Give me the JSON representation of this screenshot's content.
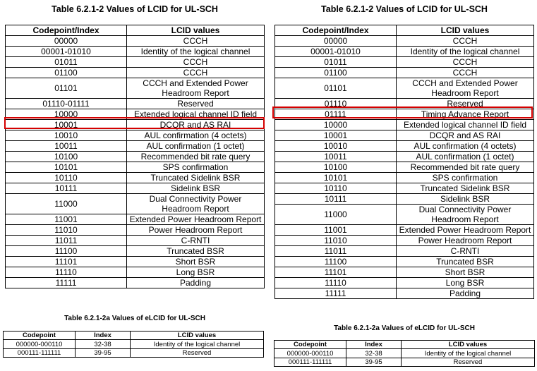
{
  "left": {
    "title": "Table 6.2.1-2 Values of LCID for UL-SCH",
    "headers": [
      "Codepoint/Index",
      "LCID values"
    ],
    "rows": [
      [
        "00000",
        "CCCH"
      ],
      [
        "00001-01010",
        "Identity of the logical channel"
      ],
      [
        "01011",
        "CCCH"
      ],
      [
        "01100",
        "CCCH"
      ],
      [
        "01101",
        "CCCH and Extended Power Headroom Report"
      ],
      [
        "01110-01111",
        "Reserved"
      ],
      [
        "10000",
        "Extended logical channel ID field"
      ],
      [
        "10001",
        "DCQR and AS RAI"
      ],
      [
        "10010",
        "AUL confirmation (4 octets)"
      ],
      [
        "10011",
        "AUL confirmation (1 octet)"
      ],
      [
        "10100",
        "Recommended bit rate query"
      ],
      [
        "10101",
        "SPS confirmation"
      ],
      [
        "10110",
        "Truncated Sidelink BSR"
      ],
      [
        "10111",
        "Sidelink BSR"
      ],
      [
        "11000",
        "Dual Connectivity Power Headroom Report"
      ],
      [
        "11001",
        "Extended Power Headroom Report"
      ],
      [
        "11010",
        "Power Headroom Report"
      ],
      [
        "11011",
        "C-RNTI"
      ],
      [
        "11100",
        "Truncated BSR"
      ],
      [
        "11101",
        "Short BSR"
      ],
      [
        "11110",
        "Long BSR"
      ],
      [
        "11111",
        "Padding"
      ]
    ],
    "sub_title": "Table 6.2.1-2a Values of eLCID for UL-SCH",
    "sub_headers": [
      "Codepoint",
      "Index",
      "LCID values"
    ],
    "sub_rows": [
      [
        "000000-000110",
        "32-38",
        "Identity of the logical channel"
      ],
      [
        "000111-111111",
        "39-95",
        "Reserved"
      ]
    ]
  },
  "right": {
    "title": "Table 6.2.1-2 Values of LCID for UL-SCH",
    "headers": [
      "Codepoint/Index",
      "LCID values"
    ],
    "rows": [
      [
        "00000",
        "CCCH"
      ],
      [
        "00001-01010",
        "Identity of the logical channel"
      ],
      [
        "01011",
        "CCCH"
      ],
      [
        "01100",
        "CCCH"
      ],
      [
        "01101",
        "CCCH and Extended Power Headroom Report"
      ],
      [
        "01110",
        "Reserved"
      ],
      [
        "01111",
        "Timing Advance Report"
      ],
      [
        "10000",
        "Extended logical channel ID field"
      ],
      [
        "10001",
        "DCQR and AS RAI"
      ],
      [
        "10010",
        "AUL confirmation (4 octets)"
      ],
      [
        "10011",
        "AUL confirmation (1 octet)"
      ],
      [
        "10100",
        "Recommended bit rate query"
      ],
      [
        "10101",
        "SPS confirmation"
      ],
      [
        "10110",
        "Truncated Sidelink BSR"
      ],
      [
        "10111",
        "Sidelink BSR"
      ],
      [
        "11000",
        "Dual Connectivity Power Headroom Report"
      ],
      [
        "11001",
        "Extended Power Headroom Report"
      ],
      [
        "11010",
        "Power Headroom Report"
      ],
      [
        "11011",
        "C-RNTI"
      ],
      [
        "11100",
        "Truncated BSR"
      ],
      [
        "11101",
        "Short BSR"
      ],
      [
        "11110",
        "Long BSR"
      ],
      [
        "11111",
        "Padding"
      ]
    ],
    "sub_title": "Table 6.2.1-2a Values of eLCID for UL-SCH",
    "sub_headers": [
      "Codepoint",
      "Index",
      "LCID values"
    ],
    "sub_rows": [
      [
        "000000-000110",
        "32-38",
        "Identity of the logical channel"
      ],
      [
        "000111-111111",
        "39-95",
        "Reserved"
      ]
    ]
  },
  "highlight_color": "#d40000"
}
